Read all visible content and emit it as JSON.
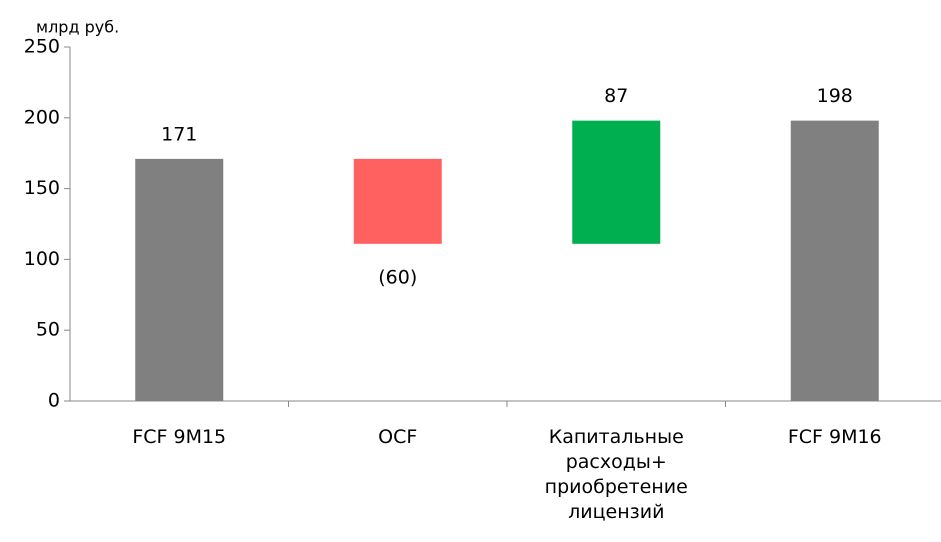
{
  "chart_data": {
    "type": "waterfall",
    "unit_label": "млрд руб.",
    "categories": [
      "FCF 9M15",
      "OCF",
      "Капитальные расходы+ приобретение лицензий",
      "FCF 9M16"
    ],
    "values": [
      171,
      -60,
      87,
      198
    ],
    "value_labels": [
      "171",
      "(60)",
      "87",
      "198"
    ],
    "totals": [
      true,
      false,
      false,
      true
    ],
    "colors": [
      "#808080",
      "#ff6161",
      "#00b050",
      "#808080"
    ],
    "ylim": [
      0,
      250
    ],
    "yticks": [
      0,
      50,
      100,
      150,
      200,
      250
    ],
    "grid": false
  }
}
